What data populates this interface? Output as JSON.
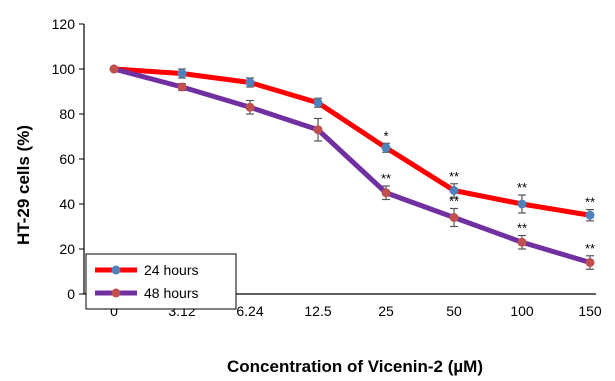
{
  "chart_data": {
    "type": "line",
    "categories": [
      "0",
      "3.12",
      "6.24",
      "12.5",
      "25",
      "50",
      "100",
      "150"
    ],
    "xlabel": "Concentration of Vicenin-2 (µM)",
    "ylabel": "HT-29 cells (%)",
    "ylim": [
      0,
      120
    ],
    "yticks": [
      "0",
      "20",
      "40",
      "60",
      "80",
      "100",
      "120"
    ],
    "grid": false,
    "legend_position": "bottom-left",
    "series": [
      {
        "name": "24 hours",
        "color": "#ff0000",
        "marker_color": "#4f81bd",
        "values": [
          100,
          98,
          94,
          85,
          65,
          46,
          40,
          35
        ],
        "errors": [
          0,
          2,
          2,
          2,
          2,
          3,
          4,
          2.5
        ],
        "annotations": [
          "",
          "",
          "",
          "",
          "*",
          "**",
          "**",
          "**"
        ]
      },
      {
        "name": "48 hours",
        "color": "#7030a0",
        "marker_color": "#c0504d",
        "values": [
          100,
          92,
          83,
          73,
          45,
          34,
          23,
          14
        ],
        "errors": [
          0,
          1.5,
          3,
          5,
          3,
          4,
          3,
          3
        ],
        "annotations": [
          "",
          "",
          "",
          "",
          "**",
          "**",
          "**",
          "**"
        ]
      }
    ]
  }
}
